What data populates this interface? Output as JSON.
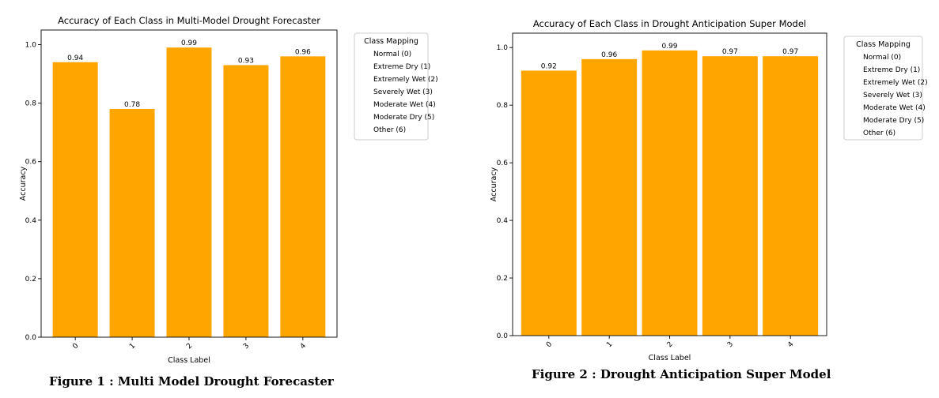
{
  "captions": [
    "Figure 1 : Multi Model Drought Forecaster",
    "Figure 2 : Drought Anticipation Super Model"
  ],
  "colors": {
    "bar": "#FFA500",
    "axis": "#000000",
    "legend_border": "#cccccc"
  },
  "chart_data": [
    {
      "type": "bar",
      "title": "Accuracy of Each Class in Multi-Model Drought Forecaster",
      "xlabel": "Class Label",
      "ylabel": "Accuracy",
      "categories": [
        "0",
        "1",
        "2",
        "3",
        "4"
      ],
      "values": [
        0.94,
        0.78,
        0.99,
        0.93,
        0.96
      ],
      "data_labels": [
        "0.94",
        "0.78",
        "0.99",
        "0.93",
        "0.96"
      ],
      "ylim": [
        0,
        1.05
      ],
      "yticks": [
        "0.0",
        "0.2",
        "0.4",
        "0.6",
        "0.8",
        "1.0"
      ],
      "grid": false,
      "legend": {
        "placement": "outside-right",
        "title": "Class Mapping",
        "items": [
          "Normal (0)",
          "Extreme Dry (1)",
          "Extremely Wet (2)",
          "Severely Wet (3)",
          "Moderate Wet (4)",
          "Moderate Dry (5)",
          "Other (6)"
        ]
      }
    },
    {
      "type": "bar",
      "title": "Accuracy of Each Class in Drought Anticipation Super Model",
      "xlabel": "Class Label",
      "ylabel": "Accuracy",
      "categories": [
        "0",
        "1",
        "2",
        "3",
        "4"
      ],
      "values": [
        0.92,
        0.96,
        0.99,
        0.97,
        0.97
      ],
      "data_labels": [
        "0.92",
        "0.96",
        "0.99",
        "0.97",
        "0.97"
      ],
      "ylim": [
        0,
        1.05
      ],
      "yticks": [
        "0.0",
        "0.2",
        "0.4",
        "0.6",
        "0.8",
        "1.0"
      ],
      "grid": false,
      "legend": {
        "placement": "outside-right",
        "title": "Class Mapping",
        "items": [
          "Normal (0)",
          "Extreme Dry (1)",
          "Extremely Wet (2)",
          "Severely Wet (3)",
          "Moderate Wet (4)",
          "Moderate Dry (5)",
          "Other (6)"
        ]
      }
    }
  ]
}
